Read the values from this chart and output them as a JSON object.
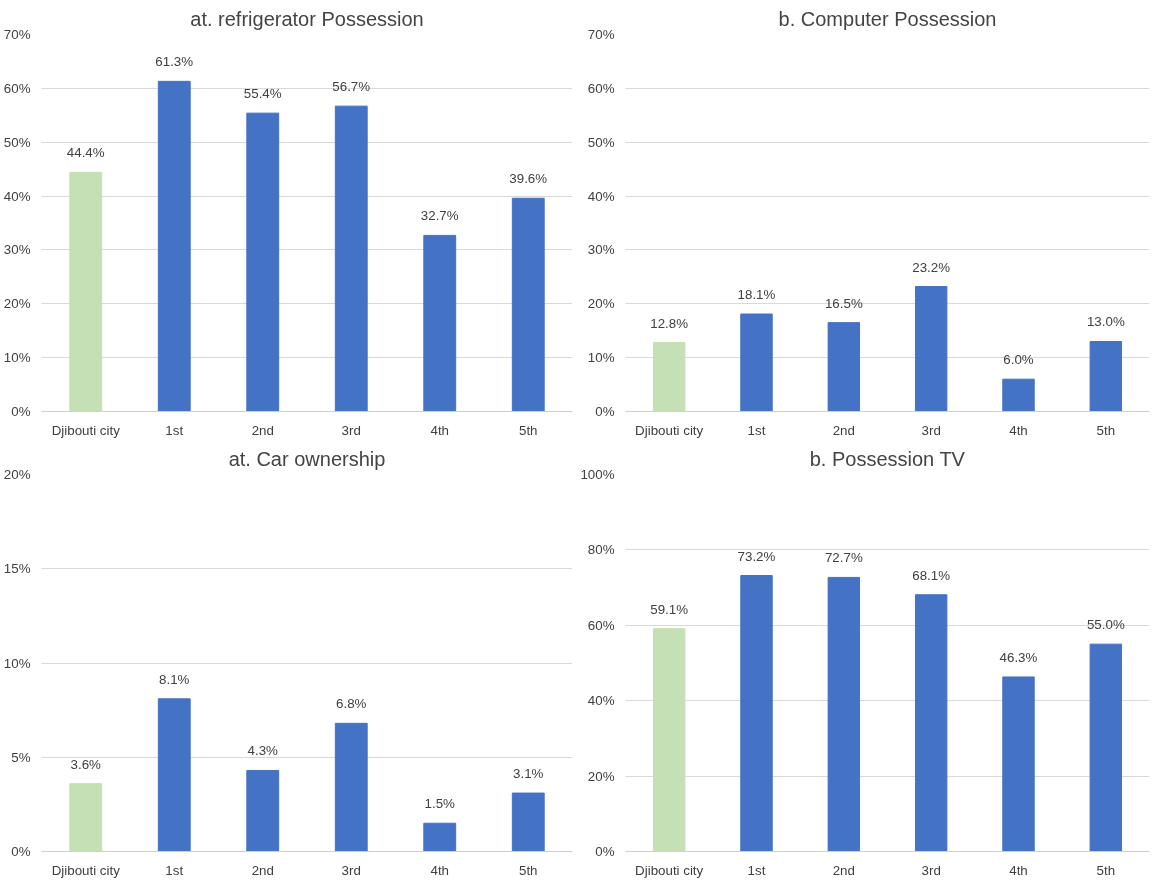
{
  "chart_data": [
    {
      "type": "bar",
      "title": "at. refrigerator Possession",
      "categories": [
        "Djibouti city",
        "1st",
        "2nd",
        "3rd",
        "4th",
        "5th"
      ],
      "values": [
        44.4,
        61.3,
        55.4,
        56.7,
        32.7,
        39.6
      ],
      "value_labels": [
        "44.4%",
        "61.3%",
        "55.4%",
        "56.7%",
        "32.7%",
        "39.6%"
      ],
      "colors": [
        "#c5e0b4",
        "#4472c4",
        "#4472c4",
        "#4472c4",
        "#4472c4",
        "#4472c4"
      ],
      "ylim": [
        0,
        70
      ],
      "yticks": [
        {
          "value": 0,
          "label": "0%"
        },
        {
          "value": 10,
          "label": "10%"
        },
        {
          "value": 20,
          "label": "20%"
        },
        {
          "value": 30,
          "label": "30%"
        },
        {
          "value": 40,
          "label": "40%"
        },
        {
          "value": 50,
          "label": "50%"
        },
        {
          "value": 60,
          "label": "60%"
        },
        {
          "value": 70,
          "label": "70%"
        }
      ],
      "grid": "y"
    },
    {
      "type": "bar",
      "title": "b. Computer Possession",
      "categories": [
        "Djibouti city",
        "1st",
        "2nd",
        "3rd",
        "4th",
        "5th"
      ],
      "values": [
        12.8,
        18.1,
        16.5,
        23.2,
        6.0,
        13.0
      ],
      "value_labels": [
        "12.8%",
        "18.1%",
        "16.5%",
        "23.2%",
        "6.0%",
        "13.0%"
      ],
      "colors": [
        "#c5e0b4",
        "#4472c4",
        "#4472c4",
        "#4472c4",
        "#4472c4",
        "#4472c4"
      ],
      "ylim": [
        0,
        70
      ],
      "yticks": [
        {
          "value": 0,
          "label": "0%"
        },
        {
          "value": 10,
          "label": "10%"
        },
        {
          "value": 20,
          "label": "20%"
        },
        {
          "value": 30,
          "label": "30%"
        },
        {
          "value": 40,
          "label": "40%"
        },
        {
          "value": 50,
          "label": "50%"
        },
        {
          "value": 60,
          "label": "60%"
        },
        {
          "value": 70,
          "label": "70%"
        }
      ],
      "grid": "y"
    },
    {
      "type": "bar",
      "title": "at. Car ownership",
      "categories": [
        "Djibouti city",
        "1st",
        "2nd",
        "3rd",
        "4th",
        "5th"
      ],
      "values": [
        3.6,
        8.1,
        4.3,
        6.8,
        1.5,
        3.1
      ],
      "value_labels": [
        "3.6%",
        "8.1%",
        "4.3%",
        "6.8%",
        "1.5%",
        "3.1%"
      ],
      "colors": [
        "#c5e0b4",
        "#4472c4",
        "#4472c4",
        "#4472c4",
        "#4472c4",
        "#4472c4"
      ],
      "ylim": [
        0,
        20
      ],
      "yticks": [
        {
          "value": 0,
          "label": "0%"
        },
        {
          "value": 5,
          "label": "5%"
        },
        {
          "value": 10,
          "label": "10%"
        },
        {
          "value": 15,
          "label": "15%"
        },
        {
          "value": 20,
          "label": "20%"
        }
      ],
      "grid": "y"
    },
    {
      "type": "bar",
      "title": "b. Possession TV",
      "categories": [
        "Djibouti city",
        "1st",
        "2nd",
        "3rd",
        "4th",
        "5th"
      ],
      "values": [
        59.1,
        73.2,
        72.7,
        68.1,
        46.3,
        55.0
      ],
      "value_labels": [
        "59.1%",
        "73.2%",
        "72.7%",
        "68.1%",
        "46.3%",
        "55.0%"
      ],
      "colors": [
        "#c5e0b4",
        "#4472c4",
        "#4472c4",
        "#4472c4",
        "#4472c4",
        "#4472c4"
      ],
      "ylim": [
        0,
        100
      ],
      "yticks": [
        {
          "value": 0,
          "label": "0%"
        },
        {
          "value": 20,
          "label": "20%"
        },
        {
          "value": 40,
          "label": "40%"
        },
        {
          "value": 60,
          "label": "60%"
        },
        {
          "value": 80,
          "label": "80%"
        },
        {
          "value": 100,
          "label": "100%"
        }
      ],
      "grid": "y"
    }
  ]
}
